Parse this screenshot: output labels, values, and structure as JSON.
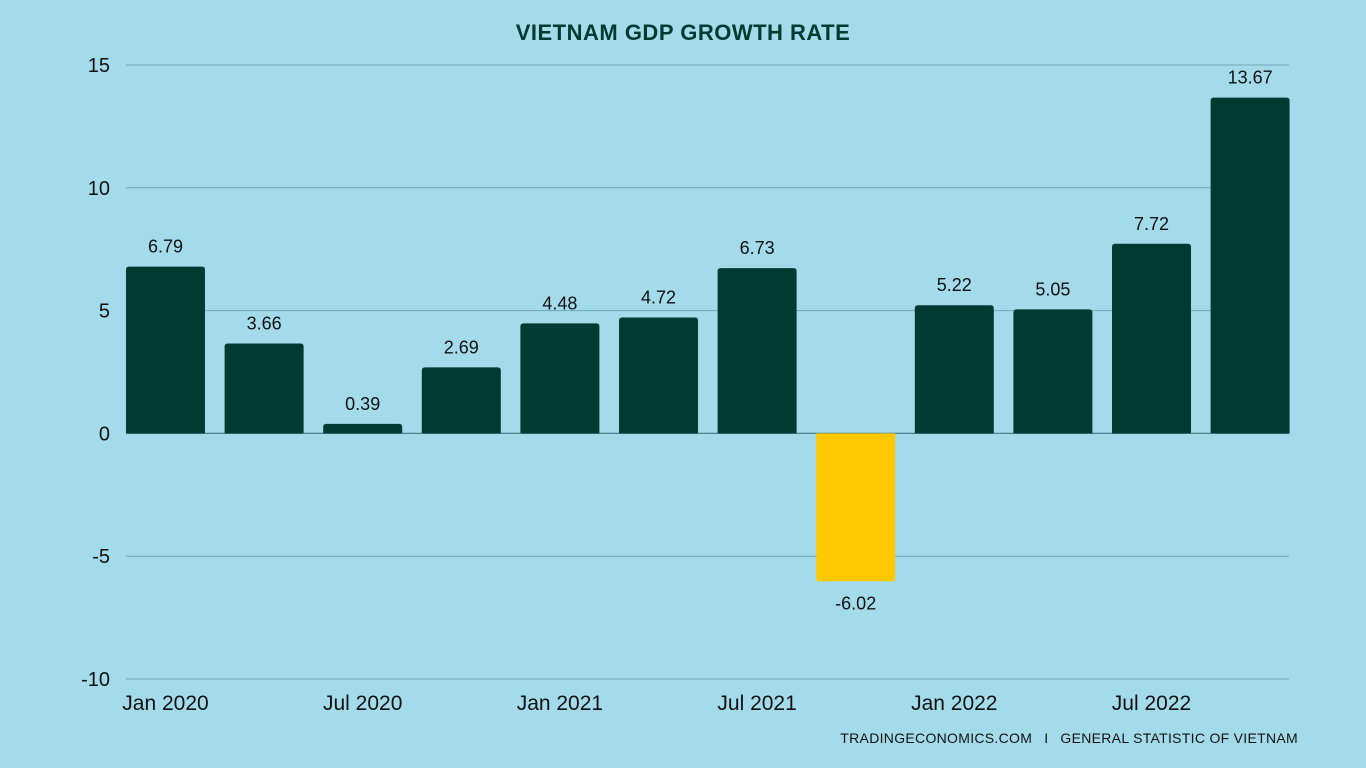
{
  "chart_data": {
    "type": "bar",
    "title": "VIETNAM GDP GROWTH RATE",
    "categories": [
      "Jan 2020",
      "",
      "Jul 2020",
      "",
      "Jan 2021",
      "",
      "Jul 2021",
      "",
      "Jan 2022",
      "",
      "Jul 2022",
      ""
    ],
    "values": [
      6.79,
      3.66,
      0.39,
      2.69,
      4.48,
      4.72,
      6.73,
      -6.02,
      5.22,
      5.05,
      7.72,
      13.67
    ],
    "value_labels": [
      "6.79",
      "3.66",
      "0.39",
      "2.69",
      "4.48",
      "4.72",
      "6.73",
      "-6.02",
      "5.22",
      "5.05",
      "7.72",
      "13.67"
    ],
    "x_tick_labels": [
      "Jan 2020",
      "Jul 2020",
      "Jan 2021",
      "Jul 2021",
      "Jan 2022",
      "Jul 2022"
    ],
    "y_tick_labels": [
      "15",
      "10",
      "5",
      "0",
      "-5",
      "-10"
    ],
    "y_ticks": [
      15,
      10,
      5,
      0,
      -5,
      -10
    ],
    "ylim": [
      -10,
      15
    ],
    "xlabel": "",
    "ylabel": "",
    "grid": true,
    "legend": "none",
    "colors": {
      "bar": "#003a31",
      "negative_bar": "#ffc800",
      "background": "#a4dbea",
      "title": "#003a31"
    }
  },
  "source": {
    "left": "TRADINGECONOMICS.COM",
    "separator": "I",
    "right": "GENERAL STATISTIC OF VIETNAM"
  }
}
